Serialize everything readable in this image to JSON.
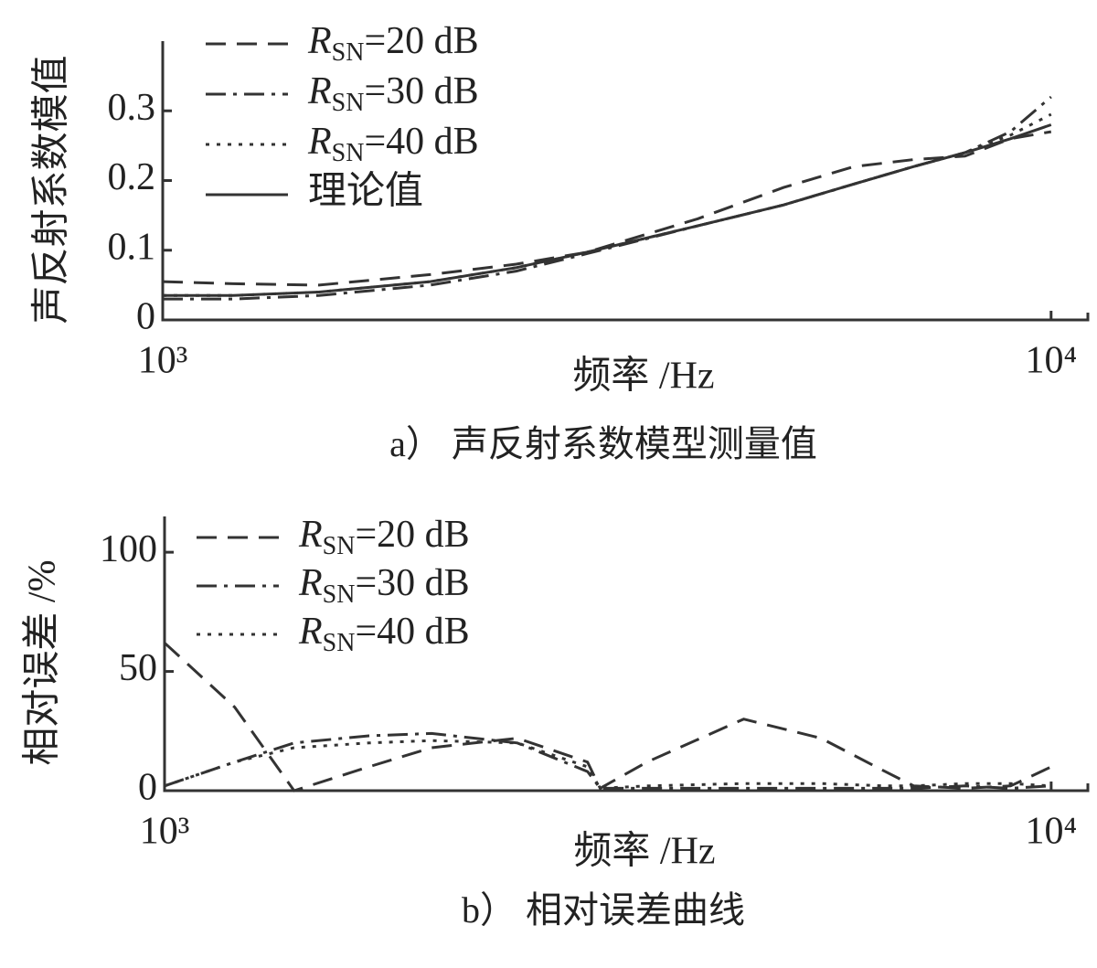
{
  "chart_data": [
    {
      "type": "line",
      "title": "a）  声反射系数模型测量值",
      "xlabel": "频率 /Hz",
      "ylabel": "声反射系数模值",
      "log_x": true,
      "xlim": [
        1000,
        11000
      ],
      "xticks": [
        {
          "value": 1000,
          "label": "10³"
        },
        {
          "value": 10000,
          "label": "10⁴"
        }
      ],
      "ylim": [
        0,
        0.4
      ],
      "yticks": [
        0,
        0.1,
        0.2,
        0.3
      ],
      "legend": "upper left",
      "x": [
        1000,
        1200,
        1500,
        2000,
        2500,
        3000,
        4000,
        5000,
        6000,
        7000,
        8000,
        9000,
        10000
      ],
      "series": [
        {
          "name": "RSN=20 dB",
          "color": "#333333",
          "linestyle": "dashed",
          "values": [
            0.055,
            0.052,
            0.05,
            0.065,
            0.08,
            0.097,
            0.145,
            0.19,
            0.22,
            0.23,
            0.235,
            0.26,
            0.27
          ]
        },
        {
          "name": "RSN=30 dB",
          "color": "#333333",
          "linestyle": "dashdot",
          "values": [
            0.03,
            0.03,
            0.035,
            0.05,
            0.07,
            0.095,
            0.135,
            0.165,
            0.195,
            0.22,
            0.24,
            0.27,
            0.32
          ]
        },
        {
          "name": "RSN=40 dB",
          "color": "#333333",
          "linestyle": "dotted",
          "values": [
            0.035,
            0.035,
            0.04,
            0.055,
            0.075,
            0.097,
            0.135,
            0.165,
            0.195,
            0.22,
            0.24,
            0.265,
            0.295
          ]
        },
        {
          "name": "理论值",
          "color": "#333333",
          "linestyle": "solid",
          "values": [
            0.035,
            0.035,
            0.04,
            0.055,
            0.075,
            0.097,
            0.135,
            0.165,
            0.195,
            0.22,
            0.24,
            0.26,
            0.28
          ]
        }
      ]
    },
    {
      "type": "line",
      "title": "b）  相对误差曲线",
      "xlabel": "频率 /Hz",
      "ylabel": "相对误差 /%",
      "log_x": true,
      "xlim": [
        1000,
        11000
      ],
      "xticks": [
        {
          "value": 1000,
          "label": "10³"
        },
        {
          "value": 10000,
          "label": "10⁴"
        }
      ],
      "ylim": [
        0,
        115
      ],
      "yticks": [
        0,
        50,
        100
      ],
      "legend": "upper left",
      "x": [
        1000,
        1200,
        1400,
        1700,
        2000,
        2500,
        3000,
        3100,
        3500,
        4500,
        5500,
        6500,
        7000,
        8000,
        9000,
        10000
      ],
      "series": [
        {
          "name": "RSN=20 dB",
          "color": "#333333",
          "linestyle": "dashed",
          "values": [
            62,
            35,
            0,
            10,
            18,
            22,
            12,
            1,
            12,
            30,
            22,
            8,
            2,
            1,
            2,
            10
          ]
        },
        {
          "name": "RSN=30 dB",
          "color": "#333333",
          "linestyle": "dashdot",
          "values": [
            2,
            12,
            20,
            23,
            24,
            20,
            8,
            1,
            1,
            1,
            1,
            1,
            1,
            2,
            1,
            2
          ]
        },
        {
          "name": "RSN=40 dB",
          "color": "#333333",
          "linestyle": "dotted",
          "values": [
            2,
            12,
            18,
            20,
            21,
            20,
            10,
            1,
            2,
            3,
            3,
            2,
            2,
            3,
            3,
            2
          ]
        }
      ]
    }
  ]
}
